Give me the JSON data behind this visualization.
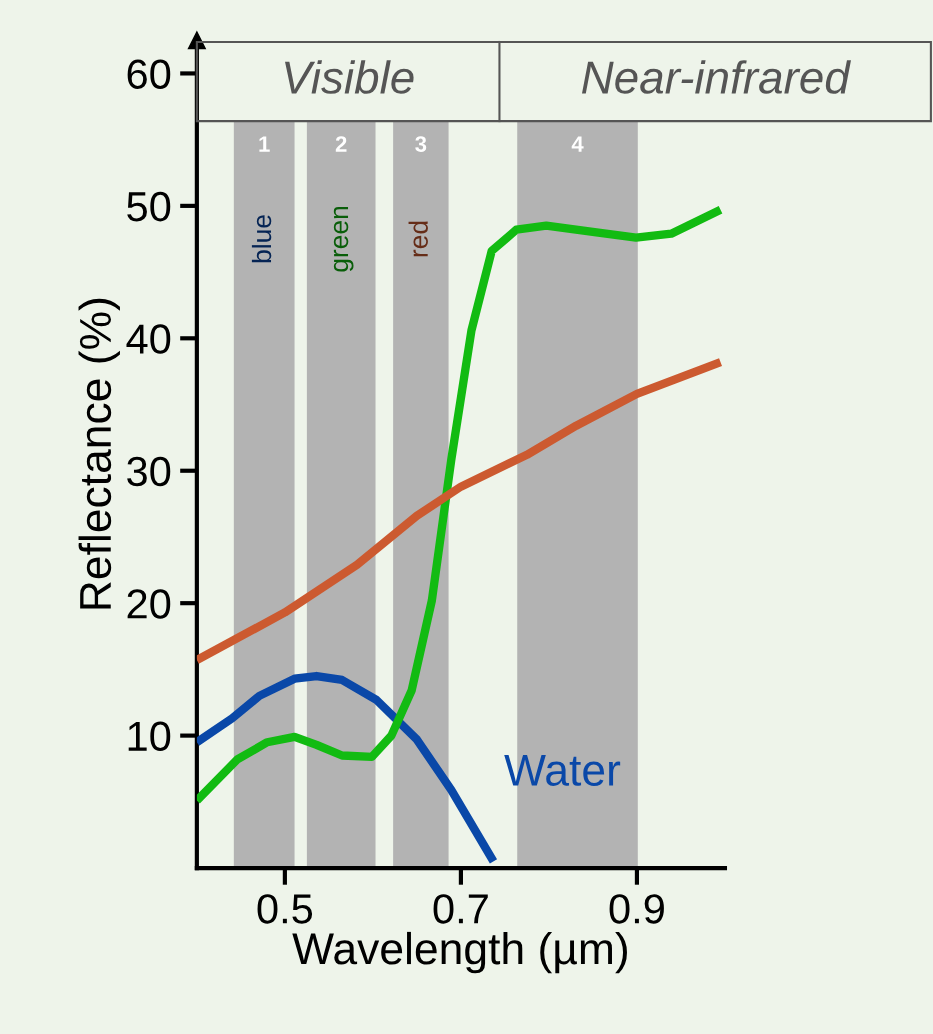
{
  "chart_data": {
    "type": "line",
    "xlabel": "Wavelength (µm)",
    "ylabel": "Reflectance (%)",
    "xlim": [
      0.4,
      1.0
    ],
    "xticks": [
      0.5,
      0.7,
      0.9
    ],
    "ylim": [
      0,
      62.5
    ],
    "yticks": [
      10,
      20,
      30,
      40,
      50,
      60
    ],
    "grid": false,
    "legend": false,
    "marker": "none",
    "line_style": "solid",
    "series": [
      {
        "name": "Water",
        "color": "#0a48a8",
        "x": [
          0.4,
          0.44,
          0.471,
          0.511,
          0.536,
          0.565,
          0.604,
          0.65,
          0.689,
          0.737
        ],
        "values": [
          9.5,
          11.3,
          13.0,
          14.3,
          14.5,
          14.2,
          12.7,
          9.7,
          5.9,
          0.5
        ]
      },
      {
        "color": "#12bb12",
        "x": [
          0.4,
          0.446,
          0.48,
          0.511,
          0.536,
          0.565,
          0.599,
          0.621,
          0.644,
          0.667,
          0.689,
          0.712,
          0.735,
          0.763,
          0.797,
          0.854,
          0.899,
          0.939,
          0.967,
          0.995
        ],
        "values": [
          5.1,
          8.2,
          9.5,
          9.9,
          9.3,
          8.5,
          8.4,
          10.0,
          13.4,
          20.2,
          30.8,
          40.6,
          46.6,
          48.2,
          48.5,
          48.0,
          47.6,
          47.9,
          48.8,
          49.7
        ]
      },
      {
        "color": "#cc5a30",
        "x": [
          0.4,
          0.5,
          0.582,
          0.65,
          0.7,
          0.775,
          0.831,
          0.9,
          0.995
        ],
        "values": [
          15.7,
          19.3,
          22.9,
          26.6,
          28.8,
          31.2,
          33.4,
          35.8,
          38.2
        ]
      }
    ],
    "bands": [
      {
        "axis": "x",
        "from": 0.442,
        "to": 0.511,
        "label": "1",
        "color": "#b3b3b3"
      },
      {
        "axis": "x",
        "from": 0.525,
        "to": 0.603,
        "label": "2",
        "color": "#b3b3b3"
      },
      {
        "axis": "x",
        "from": 0.623,
        "to": 0.686,
        "label": "3",
        "color": "#b3b3b3"
      },
      {
        "axis": "x",
        "from": 0.764,
        "to": 0.901,
        "label": "4",
        "color": "#b3b3b3"
      }
    ],
    "annotations": [
      "Visible",
      "Near-infrared",
      "blue",
      "green",
      "red"
    ]
  }
}
